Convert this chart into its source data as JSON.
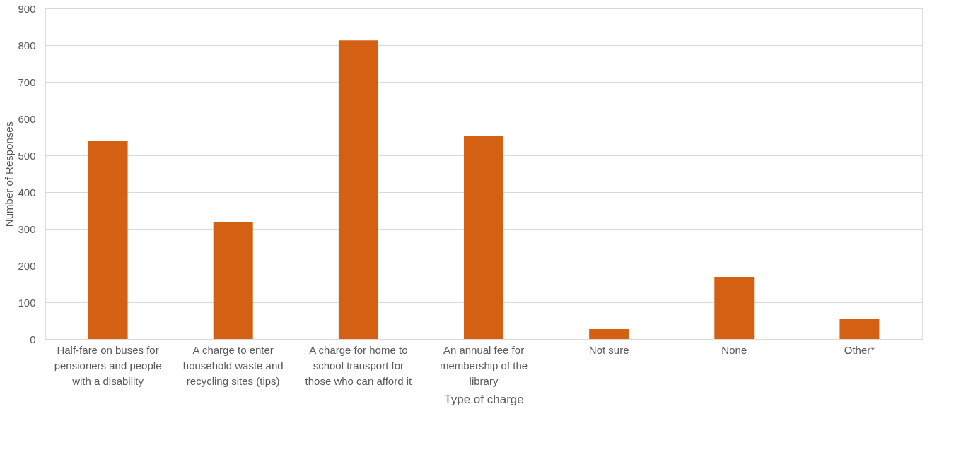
{
  "chart_data": {
    "type": "bar",
    "xlabel": "Type of charge",
    "ylabel": "Number of Responses",
    "categories": [
      "Half-fare on buses for pensioners and people with a disability",
      "A charge to enter household waste and recycling sites (tips)",
      "A charge for home to school transport for those who can afford it",
      "An annual fee for membership of the library",
      "Not sure",
      "None",
      "Other*"
    ],
    "values": [
      540,
      318,
      813,
      552,
      27,
      169,
      56
    ],
    "color": "#d46014",
    "ylim": [
      0,
      900
    ],
    "yticks": [
      0,
      100,
      200,
      300,
      400,
      500,
      600,
      700,
      800,
      900
    ],
    "grid": "y"
  }
}
